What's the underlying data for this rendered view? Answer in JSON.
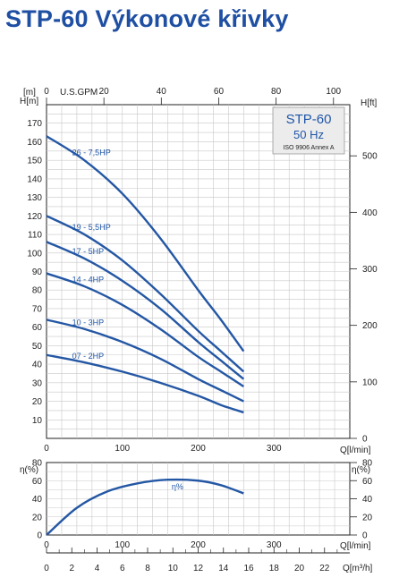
{
  "title": "STP-60 Výkonové křivky",
  "info_box": {
    "model": "STP-60",
    "frequency": "50 Hz",
    "standard": "ISO 9906 Annex A"
  },
  "colors": {
    "curve": "#2457a4",
    "title": "#1f4fa3",
    "label": "#1f56a8",
    "box_bg": "#ececec"
  },
  "chart_data": [
    {
      "type": "line",
      "ylabel": "H[m]",
      "ylabel_unit": "[m]",
      "ylabel_right": "H[ft]",
      "xlabel": "Q[l/min]",
      "xlabel_top": "U.S.GPM",
      "xlim": [
        0,
        400
      ],
      "ylim": [
        0,
        180
      ],
      "x_ticks": [
        0,
        100,
        200,
        300
      ],
      "x_tick_labels": [
        "0",
        "100",
        "200",
        "300"
      ],
      "y_ticks": [
        10,
        20,
        30,
        40,
        50,
        60,
        70,
        80,
        90,
        100,
        110,
        120,
        130,
        140,
        150,
        160,
        170
      ],
      "y_tick_labels": [
        "10",
        "20",
        "30",
        "40",
        "50",
        "60",
        "70",
        "80",
        "90",
        "100",
        "110",
        "120",
        "130",
        "140",
        "150",
        "160",
        "170"
      ],
      "top_ticks_gpm": [
        0,
        20,
        40,
        60,
        80,
        100
      ],
      "top_tick_labels": [
        "0",
        "20",
        "40",
        "60",
        "80",
        "100"
      ],
      "right_ticks_ft": [
        0,
        100,
        200,
        300,
        400,
        500
      ],
      "right_tick_labels": [
        "0",
        "100",
        "200",
        "300",
        "400",
        "500"
      ],
      "grid": true,
      "series": [
        {
          "name": "26 - 7,5HP",
          "x": [
            0,
            50,
            100,
            150,
            200,
            230,
            260
          ],
          "y": [
            163,
            150,
            132,
            108,
            80,
            64,
            47
          ]
        },
        {
          "name": "19 - 5,5HP",
          "x": [
            0,
            50,
            100,
            150,
            200,
            230,
            260
          ],
          "y": [
            120,
            110,
            96,
            78,
            58,
            47,
            36
          ]
        },
        {
          "name": "17 - 5HP",
          "x": [
            0,
            50,
            100,
            150,
            200,
            230,
            260
          ],
          "y": [
            106,
            97,
            85,
            70,
            52,
            42,
            32
          ]
        },
        {
          "name": "14 - 4HP",
          "x": [
            0,
            50,
            100,
            150,
            200,
            230,
            260
          ],
          "y": [
            89,
            82,
            72,
            59,
            44,
            36,
            28
          ]
        },
        {
          "name": "10 - 3HP",
          "x": [
            0,
            50,
            100,
            150,
            200,
            230,
            260
          ],
          "y": [
            64,
            59,
            52,
            43,
            32,
            26,
            20
          ]
        },
        {
          "name": "07 - 2HP",
          "x": [
            0,
            50,
            100,
            150,
            200,
            230,
            260
          ],
          "y": [
            45,
            41,
            36,
            30,
            23,
            18,
            14
          ]
        }
      ]
    },
    {
      "type": "line",
      "ylabel": "η(%)",
      "ylabel_right": "η(%)",
      "xlabel": "Q[l/min]",
      "xlabel2": "Q[m³/h]",
      "xlim": [
        0,
        400
      ],
      "ylim": [
        0,
        80
      ],
      "y_ticks": [
        0,
        20,
        40,
        60,
        80
      ],
      "y_tick_labels": [
        "0",
        "20",
        "40",
        "60",
        "80"
      ],
      "x_ticks": [
        0,
        100,
        200,
        300
      ],
      "x_tick_labels": [
        "0",
        "100",
        "200",
        "300"
      ],
      "m3h_ticks": [
        0,
        2,
        4,
        6,
        8,
        10,
        12,
        14,
        16,
        18,
        20,
        22
      ],
      "m3h_tick_labels": [
        "0",
        "2",
        "4",
        "6",
        "8",
        "10",
        "12",
        "14",
        "16",
        "18",
        "20",
        "22"
      ],
      "grid": true,
      "series": [
        {
          "name": "η%",
          "x": [
            0,
            40,
            80,
            120,
            160,
            200,
            230,
            260
          ],
          "y": [
            0,
            30,
            48,
            57,
            61,
            60,
            55,
            46
          ]
        }
      ]
    }
  ]
}
